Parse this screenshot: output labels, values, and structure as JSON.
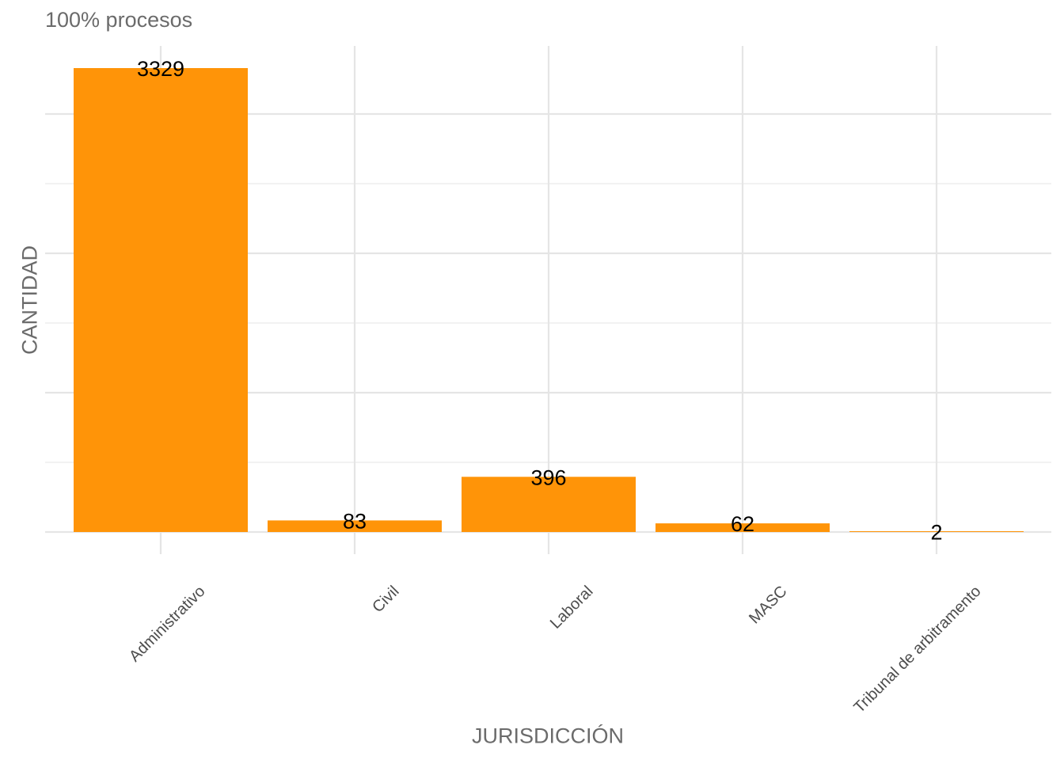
{
  "chart_data": {
    "type": "bar",
    "subtitle": "100% procesos",
    "xlabel": "JURISDICCIÓN",
    "ylabel": "CANTIDAD",
    "categories": [
      "Administrativo",
      "Civil",
      "Laboral",
      "MASC",
      "Tribunal de arbitramento"
    ],
    "values": [
      3329,
      83,
      396,
      62,
      2
    ],
    "data_labels": [
      "3329",
      "83",
      "396",
      "62",
      "2"
    ],
    "ylim": [
      0,
      3329
    ],
    "y_tick_labels_shown": false,
    "grid": true,
    "bar_color": "#FF9408",
    "grid_color": "#E5E5E5"
  }
}
